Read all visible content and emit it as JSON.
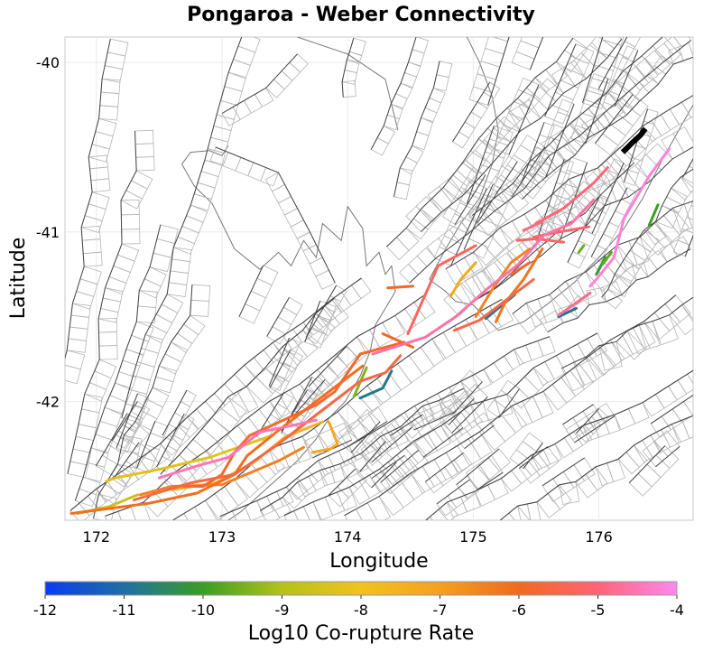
{
  "title": "Pongaroa - Weber Connectivity",
  "x_axis": {
    "label": "Longitude",
    "ticks": [
      172,
      173,
      174,
      175,
      176
    ],
    "range": [
      171.75,
      176.75
    ]
  },
  "y_axis": {
    "label": "Latitude",
    "ticks": [
      -40,
      -41,
      -42
    ],
    "range": [
      -42.7,
      -39.85
    ]
  },
  "colorbar": {
    "label": "Log10 Co-rupture Rate",
    "ticks": [
      -12,
      -11,
      -10,
      -9,
      -8,
      -7,
      -6,
      -5,
      -4
    ],
    "range": [
      -12,
      -4
    ],
    "stops": [
      {
        "value": -12,
        "color": "#0a3cf0"
      },
      {
        "value": -11,
        "color": "#1f6fa5"
      },
      {
        "value": -10,
        "color": "#3a9e22"
      },
      {
        "value": -9,
        "color": "#b5c21a"
      },
      {
        "value": -8,
        "color": "#f2c21c"
      },
      {
        "value": -7,
        "color": "#f5a020"
      },
      {
        "value": -6,
        "color": "#f06a1e"
      },
      {
        "value": -5,
        "color": "#ff6478"
      },
      {
        "value": -4,
        "color": "#ff88f0"
      }
    ]
  },
  "highlight_color": "#000000",
  "fault_line_color": "#444444",
  "fault_box_color": "#b5b5b5",
  "coast_color": "#777777",
  "chart_data": {
    "type": "map",
    "title": "Pongaroa - Weber Connectivity",
    "xlabel": "Longitude",
    "ylabel": "Latitude",
    "xlim": [
      171.75,
      176.75
    ],
    "ylim": [
      -42.7,
      -39.85
    ],
    "grid": true,
    "highlighted_fault": {
      "name": "Pongaroa - Weber",
      "points": [
        [
          176.19,
          -40.53
        ],
        [
          176.27,
          -40.47
        ],
        [
          176.33,
          -40.43
        ],
        [
          176.37,
          -40.39
        ]
      ]
    },
    "connected_ruptures": [
      {
        "rate": -4.2,
        "points": [
          [
            176.56,
            -40.51
          ],
          [
            176.4,
            -40.67
          ],
          [
            176.2,
            -40.92
          ],
          [
            176.12,
            -41.15
          ],
          [
            175.98,
            -41.28
          ],
          [
            175.93,
            -41.32
          ]
        ]
      },
      {
        "rate": -4.6,
        "points": [
          [
            175.96,
            -40.81
          ],
          [
            175.78,
            -40.95
          ],
          [
            175.56,
            -41.02
          ],
          [
            175.36,
            -41.19
          ],
          [
            175.12,
            -41.33
          ],
          [
            174.86,
            -41.5
          ],
          [
            174.62,
            -41.62
          ],
          [
            174.2,
            -41.72
          ]
        ]
      },
      {
        "rate": -5.0,
        "points": [
          [
            176.07,
            -40.62
          ],
          [
            175.96,
            -40.71
          ],
          [
            175.72,
            -40.86
          ],
          [
            175.5,
            -40.95
          ]
        ]
      },
      {
        "rate": -5.1,
        "points": [
          [
            175.92,
            -40.97
          ],
          [
            175.68,
            -41.0
          ],
          [
            175.48,
            -41.03
          ]
        ]
      },
      {
        "rate": -4.9,
        "points": [
          [
            175.55,
            -40.94
          ],
          [
            175.4,
            -40.99
          ]
        ]
      },
      {
        "rate": -5.2,
        "points": [
          [
            175.72,
            -41.06
          ],
          [
            175.5,
            -41.04
          ],
          [
            175.35,
            -41.05
          ]
        ]
      },
      {
        "rate": -4.8,
        "points": [
          [
            175.93,
            -41.36
          ],
          [
            175.68,
            -41.49
          ]
        ]
      },
      {
        "rate": -5.3,
        "points": [
          [
            175.02,
            -41.08
          ],
          [
            174.72,
            -41.2
          ],
          [
            174.48,
            -41.6
          ]
        ]
      },
      {
        "rate": -5.5,
        "points": [
          [
            175.48,
            -41.28
          ],
          [
            175.3,
            -41.38
          ],
          [
            175.05,
            -41.52
          ],
          [
            174.85,
            -41.58
          ]
        ]
      },
      {
        "rate": -5.7,
        "points": [
          [
            175.45,
            -41.18
          ],
          [
            175.3,
            -41.25
          ]
        ]
      },
      {
        "rate": -6.2,
        "points": [
          [
            175.55,
            -41.1
          ],
          [
            175.4,
            -41.28
          ],
          [
            175.25,
            -41.42
          ],
          [
            175.18,
            -41.53
          ]
        ]
      },
      {
        "rate": -6.5,
        "points": [
          [
            175.45,
            -41.1
          ],
          [
            175.3,
            -41.18
          ],
          [
            175.15,
            -41.34
          ],
          [
            175.02,
            -41.5
          ]
        ]
      },
      {
        "rate": -7.3,
        "points": [
          [
            175.02,
            -41.18
          ],
          [
            174.9,
            -41.28
          ],
          [
            174.82,
            -41.38
          ]
        ]
      },
      {
        "rate": -5.6,
        "points": [
          [
            174.42,
            -41.73
          ],
          [
            174.3,
            -41.83
          ],
          [
            174.1,
            -41.88
          ],
          [
            173.8,
            -42.05
          ],
          [
            173.45,
            -42.25
          ],
          [
            173.1,
            -42.43
          ],
          [
            172.75,
            -42.48
          ],
          [
            172.3,
            -42.58
          ]
        ]
      },
      {
        "rate": -5.8,
        "points": [
          [
            174.45,
            -41.65
          ],
          [
            174.1,
            -41.72
          ],
          [
            173.9,
            -41.94
          ],
          [
            173.75,
            -42.02
          ],
          [
            173.4,
            -42.14
          ],
          [
            173.22,
            -42.2
          ],
          [
            173.1,
            -42.3
          ],
          [
            173.0,
            -42.43
          ],
          [
            172.85,
            -42.5
          ],
          [
            172.7,
            -42.5
          ]
        ]
      },
      {
        "rate": -6.1,
        "points": [
          [
            174.12,
            -41.79
          ],
          [
            173.8,
            -41.97
          ],
          [
            173.45,
            -42.17
          ],
          [
            173.2,
            -42.32
          ],
          [
            173.1,
            -42.43
          ],
          [
            172.8,
            -42.54
          ],
          [
            172.42,
            -42.6
          ],
          [
            171.8,
            -42.66
          ]
        ]
      },
      {
        "rate": -6.4,
        "points": [
          [
            173.65,
            -42.27
          ],
          [
            173.45,
            -42.35
          ],
          [
            173.0,
            -42.49
          ],
          [
            172.6,
            -42.5
          ],
          [
            172.35,
            -42.55
          ]
        ]
      },
      {
        "rate": -4.5,
        "points": [
          [
            173.75,
            -42.11
          ],
          [
            173.5,
            -42.15
          ],
          [
            173.3,
            -42.18
          ],
          [
            173.05,
            -42.33
          ],
          [
            172.8,
            -42.38
          ],
          [
            172.5,
            -42.45
          ]
        ]
      },
      {
        "rate": -7.5,
        "points": [
          [
            173.8,
            -42.12
          ],
          [
            173.5,
            -42.21
          ],
          [
            173.25,
            -42.36
          ],
          [
            172.95,
            -42.48
          ],
          [
            172.6,
            -42.52
          ]
        ]
      },
      {
        "rate": -8.3,
        "points": [
          [
            173.4,
            -42.2
          ],
          [
            172.9,
            -42.33
          ],
          [
            172.5,
            -42.4
          ],
          [
            172.15,
            -42.45
          ],
          [
            172.08,
            -42.47
          ]
        ]
      },
      {
        "rate": -8.6,
        "points": [
          [
            172.33,
            -42.55
          ],
          [
            172.1,
            -42.62
          ],
          [
            171.85,
            -42.66
          ]
        ]
      },
      {
        "rate": -7.2,
        "points": [
          [
            173.85,
            -42.12
          ],
          [
            173.92,
            -42.25
          ],
          [
            173.86,
            -42.28
          ],
          [
            173.72,
            -42.3
          ]
        ]
      },
      {
        "rate": -6.0,
        "points": [
          [
            174.52,
            -41.68
          ],
          [
            174.28,
            -41.6
          ]
        ]
      },
      {
        "rate": -5.9,
        "points": [
          [
            174.52,
            -41.32
          ],
          [
            174.32,
            -41.33
          ]
        ]
      },
      {
        "rate": -10.8,
        "points": [
          [
            174.35,
            -41.82
          ],
          [
            174.28,
            -41.92
          ],
          [
            174.1,
            -41.98
          ]
        ]
      },
      {
        "rate": -9.4,
        "points": [
          [
            174.15,
            -41.8
          ],
          [
            174.05,
            -41.97
          ]
        ]
      },
      {
        "rate": -10.8,
        "points": [
          [
            175.33,
            -41.37
          ],
          [
            175.1,
            -41.51
          ]
        ]
      },
      {
        "rate": -10.9,
        "points": [
          [
            175.82,
            -41.45
          ],
          [
            175.68,
            -41.5
          ]
        ]
      },
      {
        "rate": -10.0,
        "points": [
          [
            176.47,
            -40.84
          ],
          [
            176.4,
            -40.96
          ]
        ]
      },
      {
        "rate": -9.7,
        "points": [
          [
            176.1,
            -41.12
          ],
          [
            176.03,
            -41.19
          ]
        ]
      },
      {
        "rate": -10.2,
        "points": [
          [
            176.05,
            -41.15
          ],
          [
            175.98,
            -41.25
          ]
        ]
      },
      {
        "rate": -9.6,
        "points": [
          [
            175.88,
            -41.08
          ],
          [
            175.84,
            -41.12
          ]
        ]
      }
    ]
  }
}
